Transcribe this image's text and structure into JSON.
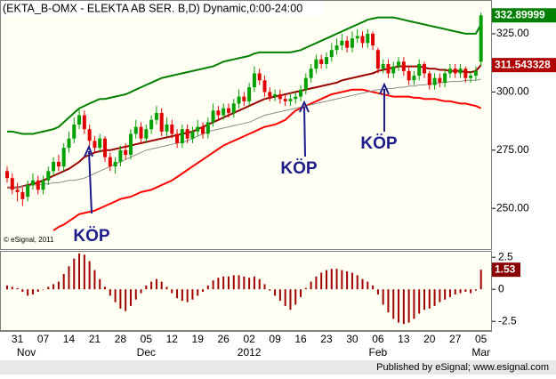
{
  "chart_data": [
    {
      "type": "candlestick",
      "title": "(EKTA_B-OMX - ELEKTA AB SER. B,D) Dynamic,0:00-24:00",
      "copyright": "© eSignal, 2011",
      "footer": "Published by eSignal; www.esignal.com",
      "categories": [
        null,
        null,
        "31",
        null,
        null,
        null,
        null,
        "07",
        null,
        null,
        null,
        null,
        "14",
        null,
        null,
        null,
        null,
        "21",
        null,
        null,
        null,
        null,
        "28",
        null,
        null,
        null,
        null,
        "05",
        null,
        null,
        null,
        null,
        "12",
        null,
        null,
        null,
        null,
        "19",
        null,
        null,
        null,
        null,
        "26",
        null,
        null,
        null,
        null,
        "02",
        null,
        null,
        null,
        null,
        "09",
        null,
        null,
        null,
        null,
        "16",
        null,
        null,
        null,
        null,
        "23",
        null,
        null,
        null,
        null,
        "30",
        null,
        null,
        null,
        null,
        "06",
        null,
        null,
        null,
        null,
        "13",
        null,
        null,
        null,
        null,
        "20",
        null,
        null,
        null,
        null,
        "27",
        null,
        null,
        null,
        null,
        "05"
      ],
      "sublabels": [
        null,
        null,
        "Nov",
        null,
        null,
        null,
        null,
        null,
        null,
        null,
        null,
        null,
        null,
        null,
        null,
        null,
        null,
        null,
        null,
        null,
        null,
        null,
        null,
        null,
        null,
        null,
        null,
        "Dec",
        null,
        null,
        null,
        null,
        null,
        null,
        null,
        null,
        null,
        null,
        null,
        null,
        null,
        null,
        null,
        null,
        null,
        null,
        null,
        "2012",
        null,
        null,
        null,
        null,
        null,
        null,
        null,
        null,
        null,
        null,
        null,
        null,
        null,
        null,
        null,
        null,
        null,
        null,
        null,
        null,
        null,
        null,
        null,
        null,
        "Feb",
        null,
        null,
        null,
        null,
        null,
        null,
        null,
        null,
        null,
        null,
        null,
        null,
        null,
        null,
        null,
        null,
        null,
        null,
        null,
        "Mar"
      ],
      "open": [
        266,
        263,
        258,
        257,
        255,
        260,
        262,
        258,
        262,
        266,
        270,
        268,
        276,
        280,
        286,
        290,
        284,
        279,
        276,
        280,
        272,
        268,
        270,
        275,
        273,
        282,
        285,
        280,
        284,
        288,
        291,
        283,
        286,
        282,
        278,
        284,
        280,
        283,
        285,
        282,
        287,
        292,
        290,
        293,
        291,
        295,
        298,
        296,
        302,
        308,
        305,
        300,
        298,
        299,
        297,
        296,
        297,
        298,
        301,
        306,
        310,
        314,
        312,
        315,
        318,
        320,
        322,
        319,
        323,
        324,
        321,
        325,
        318,
        310,
        312,
        308,
        311,
        313,
        309,
        305,
        307,
        312,
        308,
        303,
        306,
        304,
        308,
        310,
        308,
        310,
        306,
        307,
        313
      ],
      "high": [
        268,
        265,
        261,
        259,
        262,
        265,
        264,
        264,
        268,
        272,
        273,
        278,
        283,
        289,
        293,
        292,
        286,
        281,
        282,
        281,
        274,
        272,
        277,
        278,
        284,
        288,
        287,
        286,
        290,
        294,
        293,
        289,
        288,
        284,
        286,
        286,
        285,
        288,
        287,
        289,
        295,
        294,
        295,
        295,
        297,
        301,
        300,
        304,
        311,
        310,
        307,
        302,
        301,
        301,
        299,
        299,
        300,
        303,
        308,
        312,
        316,
        316,
        317,
        321,
        323,
        325,
        324,
        326,
        327,
        326,
        327,
        326,
        319,
        314,
        314,
        313,
        315,
        315,
        311,
        309,
        314,
        313,
        309,
        308,
        308,
        310,
        312,
        312,
        312,
        311,
        309,
        311,
        334
      ],
      "low": [
        261,
        256,
        253,
        251,
        253,
        258,
        256,
        256,
        260,
        264,
        266,
        266,
        274,
        278,
        284,
        282,
        277,
        274,
        274,
        270,
        266,
        265,
        268,
        271,
        271,
        280,
        278,
        278,
        282,
        286,
        281,
        281,
        280,
        276,
        276,
        278,
        278,
        281,
        280,
        280,
        285,
        288,
        288,
        289,
        289,
        293,
        294,
        294,
        300,
        303,
        298,
        296,
        296,
        295,
        294,
        294,
        295,
        296,
        299,
        304,
        308,
        310,
        310,
        313,
        316,
        318,
        317,
        317,
        321,
        319,
        319,
        318,
        308,
        308,
        306,
        306,
        309,
        307,
        303,
        303,
        305,
        306,
        301,
        301,
        302,
        302,
        306,
        306,
        306,
        304,
        304,
        305,
        311
      ],
      "close": [
        263,
        258,
        257,
        254,
        260,
        262,
        258,
        262,
        266,
        270,
        268,
        276,
        280,
        286,
        290,
        284,
        279,
        276,
        280,
        272,
        268,
        270,
        275,
        273,
        282,
        285,
        280,
        284,
        288,
        291,
        283,
        286,
        282,
        278,
        284,
        280,
        283,
        285,
        282,
        287,
        292,
        290,
        293,
        291,
        295,
        298,
        296,
        302,
        308,
        305,
        300,
        298,
        299,
        297,
        296,
        297,
        298,
        301,
        306,
        310,
        314,
        312,
        315,
        318,
        320,
        322,
        319,
        323,
        324,
        321,
        325,
        320,
        310,
        312,
        308,
        311,
        313,
        309,
        305,
        307,
        312,
        308,
        303,
        306,
        304,
        308,
        310,
        308,
        310,
        306,
        307,
        309,
        332.89999
      ],
      "up_color": "#00a000",
      "down_color": "#e00000",
      "series": [
        {
          "color": "#9a0000",
          "values": [
            259,
            259,
            259,
            259.5,
            260,
            260.5,
            261,
            262,
            263,
            264,
            265,
            266,
            267,
            268.5,
            270,
            272,
            273,
            274,
            274.5,
            275,
            275,
            275.5,
            276,
            276.5,
            277,
            277.5,
            278,
            278.5,
            279,
            279.5,
            280,
            280.5,
            281,
            281.5,
            282,
            282.5,
            283,
            284,
            285,
            286,
            287,
            288,
            289,
            290,
            291,
            292,
            293,
            294,
            295,
            296,
            297,
            297.5,
            298,
            298.5,
            299,
            299.5,
            300,
            300.5,
            301,
            301.5,
            302,
            302.5,
            303,
            303.5,
            304,
            305,
            305.5,
            306,
            306.5,
            307,
            307.5,
            308,
            309,
            309.5,
            310,
            310.5,
            311,
            311,
            311,
            311,
            311,
            310.5,
            310,
            310,
            309.5,
            309.5,
            309,
            309,
            309,
            308.5,
            308.5,
            309,
            311.543328
          ]
        },
        {
          "color": "#008000",
          "values": [
            283,
            283,
            282.5,
            282,
            282,
            282,
            282.5,
            283,
            283.5,
            284,
            285,
            287,
            289,
            291,
            293,
            294,
            295,
            296,
            297,
            297,
            297.5,
            298,
            298.5,
            299,
            300,
            301,
            302,
            303,
            304,
            305,
            306,
            306.5,
            307,
            307.5,
            308,
            308.5,
            309,
            309.5,
            310,
            310.5,
            311,
            312,
            313,
            313.5,
            314,
            314.5,
            315,
            315.5,
            316.5,
            317,
            317,
            317,
            317,
            317,
            317,
            317,
            317.5,
            318,
            319,
            320,
            321,
            322,
            323,
            324,
            325,
            326,
            327,
            328,
            329,
            330,
            331,
            331.5,
            332,
            332,
            332,
            332,
            331.5,
            331,
            330.5,
            330,
            329.5,
            329,
            328.5,
            328,
            327.5,
            327,
            326.5,
            326,
            325.5,
            325,
            325,
            325,
            329
          ]
        },
        {
          "color": "#ff0000",
          "values": [
            null,
            null,
            null,
            null,
            null,
            null,
            null,
            null,
            null,
            240.5,
            242,
            243,
            244.5,
            246,
            247.5,
            248,
            248.5,
            249,
            250,
            251,
            252,
            253,
            254,
            254.5,
            255,
            256,
            257,
            257.5,
            258,
            259,
            260,
            261,
            262,
            263.5,
            265,
            266.5,
            268,
            269.5,
            271,
            272.5,
            274,
            275.5,
            277,
            278,
            279,
            280,
            281,
            282,
            283,
            284,
            285,
            285.5,
            286,
            287,
            288,
            290,
            292,
            293,
            294,
            295,
            296,
            297,
            298,
            299,
            299.5,
            300,
            300.5,
            301,
            301,
            301,
            300.5,
            300,
            299.5,
            299,
            298.5,
            298,
            298,
            298,
            298,
            297.5,
            297.5,
            297,
            297,
            297,
            296.5,
            296,
            296,
            295.5,
            295,
            295,
            294.5,
            294,
            293
          ]
        },
        {
          "color": "#8c8c8c",
          "values": [
            259,
            259,
            259,
            259.5,
            259.5,
            260,
            260,
            260.5,
            260.5,
            261,
            261,
            261.5,
            262,
            262,
            262.5,
            263,
            264,
            265,
            266,
            267,
            268,
            269,
            270,
            271,
            272,
            273,
            274,
            275,
            275.5,
            276,
            276.5,
            277,
            277.5,
            278,
            278.5,
            279,
            280,
            281,
            282,
            283,
            283.5,
            284,
            284.5,
            285,
            285.5,
            286,
            286.5,
            287,
            288,
            289,
            290,
            290.5,
            291,
            291.5,
            292,
            292.5,
            293,
            293.5,
            294,
            294.5,
            295,
            295.5,
            296,
            296.5,
            297,
            297.5,
            298,
            298.5,
            299,
            299.5,
            300,
            300.5,
            301,
            301,
            301.5,
            301.5,
            302,
            302,
            302.5,
            302.5,
            303,
            303,
            303.5,
            303.5,
            304,
            304,
            304.5,
            304.5,
            304.5,
            305,
            305,
            305,
            305.5
          ]
        }
      ],
      "annotations": [
        "KÖP",
        "KÖP",
        "KÖP"
      ],
      "ylim": [
        232.5,
        339.5
      ],
      "yticks": [
        {
          "value": 250,
          "label": "250.00"
        },
        {
          "value": 275,
          "label": "275.00"
        },
        {
          "value": 300,
          "label": "300.00"
        },
        {
          "value": 325,
          "label": "325.00"
        }
      ]
    },
    {
      "type": "bar",
      "color": "#a00000",
      "values": [
        0.3,
        0.2,
        0.1,
        -0.2,
        -0.5,
        -0.4,
        -0.2,
        0,
        0.2,
        0.4,
        0.6,
        1.2,
        1.8,
        2.4,
        2.8,
        2.7,
        2.2,
        1.5,
        0.8,
        0.2,
        -0.5,
        -1,
        -1.5,
        -1.7,
        -1.3,
        -0.8,
        -0.3,
        0.3,
        0.6,
        0.8,
        0.6,
        0.2,
        -0.3,
        -0.7,
        -0.9,
        -1,
        -0.8,
        -0.5,
        -0.2,
        0.3,
        0.7,
        0.9,
        1.0,
        1.0,
        1.1,
        1.1,
        1.0,
        0.9,
        1.0,
        0.8,
        0.4,
        -0.1,
        -0.5,
        -0.9,
        -1.3,
        -1.6,
        -1.2,
        -0.6,
        0.1,
        0.6,
        1.0,
        1.3,
        1.5,
        1.6,
        1.6,
        1.5,
        1.4,
        1.3,
        1.1,
        0.8,
        0.6,
        0.3,
        -0.4,
        -1.2,
        -1.8,
        -2.3,
        -2.6,
        -2.7,
        -2.6,
        -2.3,
        -1.9,
        -1.6,
        -1.5,
        -1.3,
        -1.0,
        -0.8,
        -0.6,
        -0.4,
        -0.3,
        -0.2,
        -0.3,
        -0.1,
        1.53
      ],
      "ylim": [
        -3.25,
        3
      ],
      "yticks": [
        -2.5,
        0,
        2.5
      ]
    }
  ]
}
